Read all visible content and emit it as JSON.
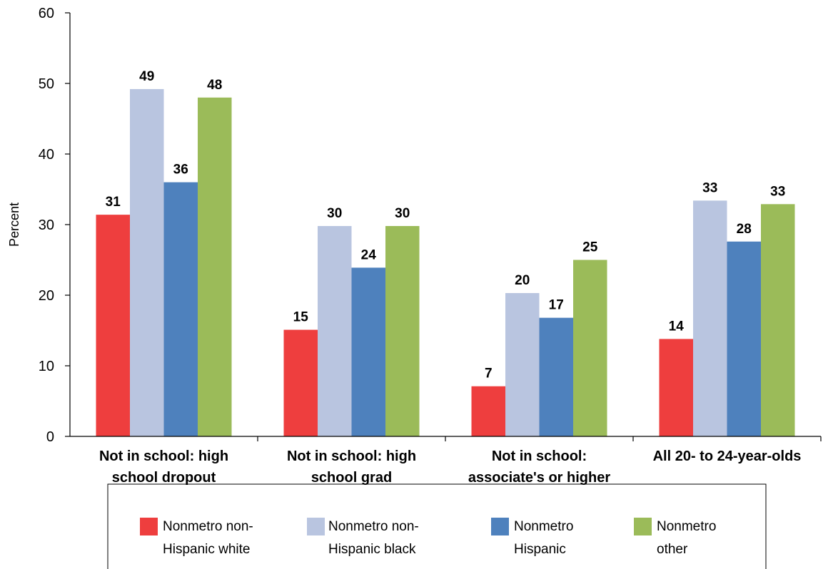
{
  "chart_data": {
    "type": "bar",
    "title": "",
    "xlabel": "",
    "ylabel": "Percent",
    "ylim": [
      0,
      60
    ],
    "yticks": [
      0,
      10,
      20,
      30,
      40,
      50,
      60
    ],
    "grid": false,
    "legend_position": "bottom",
    "categories": [
      [
        "Not in school: high",
        "school dropout"
      ],
      [
        "Not in school: high",
        "school grad"
      ],
      [
        "Not in school:",
        "associate's or higher"
      ],
      [
        "All 20- to 24-year-olds"
      ]
    ],
    "series": [
      {
        "name": [
          "Nonmetro non-",
          "Hispanic white"
        ],
        "color": "#ee3e3e",
        "values": [
          31.4,
          15.1,
          7.1,
          13.8
        ],
        "labels": [
          "31",
          "15",
          "7",
          "14"
        ]
      },
      {
        "name": [
          "Nonmetro non-",
          "Hispanic black"
        ],
        "color": "#b9c5e0",
        "values": [
          49.2,
          29.8,
          20.3,
          33.4
        ],
        "labels": [
          "49",
          "30",
          "20",
          "33"
        ]
      },
      {
        "name": [
          "Nonmetro",
          "Hispanic"
        ],
        "color": "#4e81bd",
        "values": [
          36.0,
          23.9,
          16.8,
          27.6
        ],
        "labels": [
          "36",
          "24",
          "17",
          "28"
        ]
      },
      {
        "name": [
          "Nonmetro",
          "other"
        ],
        "color": "#9bbb59",
        "values": [
          48.0,
          29.8,
          25.0,
          32.9
        ],
        "labels": [
          "48",
          "30",
          "25",
          "33"
        ]
      }
    ]
  }
}
